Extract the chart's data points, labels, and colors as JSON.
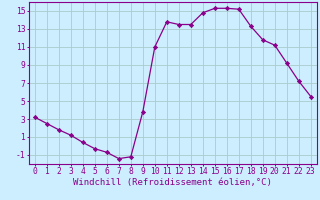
{
  "x": [
    0,
    1,
    2,
    3,
    4,
    5,
    6,
    7,
    8,
    9,
    10,
    11,
    12,
    13,
    14,
    15,
    16,
    17,
    18,
    19,
    20,
    21,
    22,
    23
  ],
  "y": [
    3.2,
    2.5,
    1.8,
    1.2,
    0.4,
    -0.3,
    -0.7,
    -1.4,
    -1.2,
    3.8,
    11.0,
    13.8,
    13.5,
    13.5,
    14.8,
    15.3,
    15.3,
    15.2,
    13.3,
    11.8,
    11.2,
    9.2,
    7.2,
    5.5
  ],
  "line_color": "#8B008B",
  "marker": "D",
  "marker_size": 2.2,
  "bg_color": "#cceeff",
  "grid_color": "#aacccc",
  "xlabel": "Windchill (Refroidissement éolien,°C)",
  "xlabel_fontsize": 6.5,
  "xlim": [
    -0.5,
    23.5
  ],
  "ylim": [
    -2.0,
    16.0
  ],
  "yticks": [
    -1,
    1,
    3,
    5,
    7,
    9,
    11,
    13,
    15
  ],
  "xticks": [
    0,
    1,
    2,
    3,
    4,
    5,
    6,
    7,
    8,
    9,
    10,
    11,
    12,
    13,
    14,
    15,
    16,
    17,
    18,
    19,
    20,
    21,
    22,
    23
  ],
  "tick_fontsize": 5.8,
  "tick_color": "#8B008B",
  "spine_color": "#8B008B",
  "linewidth": 0.9
}
